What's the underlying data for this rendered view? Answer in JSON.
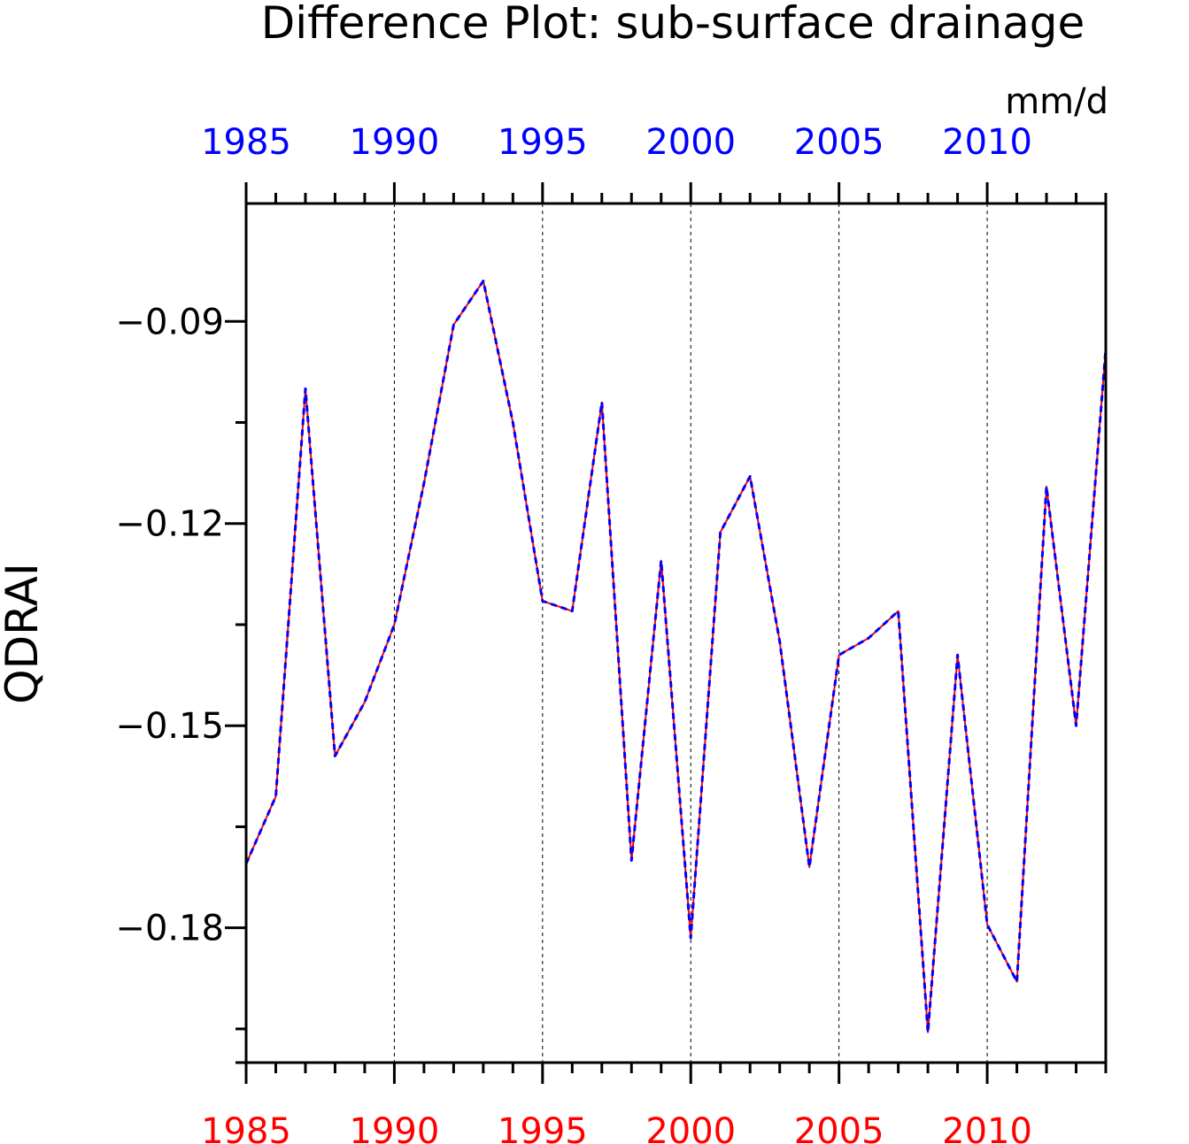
{
  "chart_data": {
    "type": "line",
    "title": "Difference Plot: sub-surface drainage",
    "units": "mm/d",
    "ylabel": "QDRAI",
    "xlim": [
      1985,
      2014
    ],
    "ylim": [
      -0.2,
      -0.0725
    ],
    "yticks": [
      "-0.09",
      "-0.12",
      "-0.15",
      "-0.18"
    ],
    "ytick_values": [
      -0.09,
      -0.12,
      -0.15,
      -0.18
    ],
    "xticks_bottom": [
      "1985",
      "1990",
      "1995",
      "2000",
      "2005",
      "2010"
    ],
    "xticks_top": [
      "1985",
      "1990",
      "1995",
      "2000",
      "2005",
      "2010"
    ],
    "xtick_values": [
      1985,
      1990,
      1995,
      2000,
      2005,
      2010
    ],
    "grid": "vertical dashed at major x ticks",
    "colors": {
      "bottom_axis": "#ff0000",
      "top_axis": "#0000ff",
      "series_red": "#ff0000",
      "series_blue": "#0000ff"
    },
    "x": [
      1985,
      1986,
      1987,
      1988,
      1989,
      1990,
      1991,
      1992,
      1993,
      1994,
      1995,
      1996,
      1997,
      1998,
      1999,
      2000,
      2001,
      2002,
      2003,
      2004,
      2005,
      2006,
      2007,
      2008,
      2009,
      2010,
      2011,
      2012,
      2013,
      2014
    ],
    "series": [
      {
        "color": "#ff0000",
        "style": "solid",
        "values": [
          -0.1705,
          -0.1605,
          -0.1,
          -0.1545,
          -0.1465,
          -0.135,
          -0.114,
          -0.0905,
          -0.084,
          -0.105,
          -0.1315,
          -0.133,
          -0.102,
          -0.17,
          -0.1255,
          -0.1815,
          -0.1213,
          -0.113,
          -0.1375,
          -0.171,
          -0.1395,
          -0.137,
          -0.133,
          -0.1955,
          -0.1395,
          -0.1795,
          -0.188,
          -0.1145,
          -0.15,
          -0.094
        ]
      },
      {
        "color": "#0000ff",
        "style": "dashed",
        "values": [
          -0.1705,
          -0.1605,
          -0.1,
          -0.1545,
          -0.1465,
          -0.135,
          -0.114,
          -0.0905,
          -0.084,
          -0.105,
          -0.1315,
          -0.133,
          -0.102,
          -0.17,
          -0.1255,
          -0.1815,
          -0.1213,
          -0.113,
          -0.1375,
          -0.171,
          -0.1395,
          -0.137,
          -0.133,
          -0.1955,
          -0.1395,
          -0.1795,
          -0.188,
          -0.1145,
          -0.15,
          -0.094
        ]
      }
    ]
  }
}
